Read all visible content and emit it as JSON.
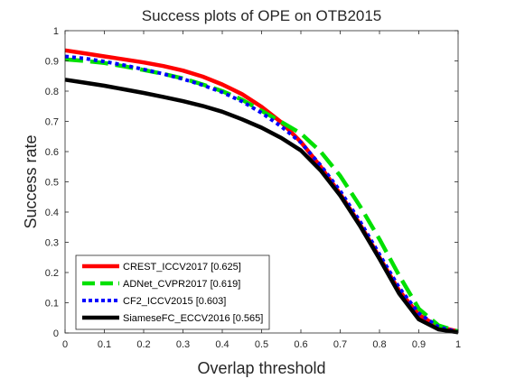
{
  "chart_data": {
    "type": "line",
    "title": "Success plots of OPE on OTB2015",
    "xlabel": "Overlap threshold",
    "ylabel": "Success rate",
    "xlim": [
      0,
      1
    ],
    "ylim": [
      0,
      1
    ],
    "xticks": [
      "0",
      "0.1",
      "0.2",
      "0.3",
      "0.4",
      "0.5",
      "0.6",
      "0.7",
      "0.8",
      "0.9",
      "1"
    ],
    "yticks": [
      "0",
      "0.1",
      "0.2",
      "0.3",
      "0.4",
      "0.5",
      "0.6",
      "0.7",
      "0.8",
      "0.9",
      "1"
    ],
    "grid": false,
    "legend_position": "bottom-left",
    "x": [
      0,
      0.05,
      0.1,
      0.15,
      0.2,
      0.25,
      0.3,
      0.35,
      0.4,
      0.45,
      0.5,
      0.55,
      0.6,
      0.65,
      0.7,
      0.75,
      0.8,
      0.85,
      0.9,
      0.95,
      1
    ],
    "series": [
      {
        "name": "CREST_ICCV2017 [0.625]",
        "color": "#ff0000",
        "dash": "solid",
        "values": [
          0.935,
          0.925,
          0.915,
          0.905,
          0.895,
          0.883,
          0.868,
          0.848,
          0.822,
          0.79,
          0.748,
          0.697,
          0.632,
          0.55,
          0.46,
          0.36,
          0.25,
          0.14,
          0.06,
          0.02,
          0.005
        ]
      },
      {
        "name": "ADNet_CVPR2017 [0.619]",
        "color": "#00e000",
        "dash": "dashed",
        "values": [
          0.905,
          0.9,
          0.893,
          0.882,
          0.87,
          0.857,
          0.842,
          0.822,
          0.8,
          0.772,
          0.735,
          0.698,
          0.66,
          0.6,
          0.52,
          0.42,
          0.31,
          0.19,
          0.08,
          0.025,
          0.005
        ]
      },
      {
        "name": "CF2_ICCV2015 [0.603]",
        "color": "#0000ff",
        "dash": "dotted",
        "values": [
          0.915,
          0.908,
          0.898,
          0.886,
          0.872,
          0.857,
          0.84,
          0.82,
          0.796,
          0.766,
          0.728,
          0.683,
          0.63,
          0.555,
          0.47,
          0.37,
          0.26,
          0.15,
          0.065,
          0.02,
          0.003
        ]
      },
      {
        "name": "SiameseFC_ECCV2016 [0.565]",
        "color": "#000000",
        "dash": "solid",
        "values": [
          0.838,
          0.828,
          0.818,
          0.806,
          0.794,
          0.781,
          0.767,
          0.751,
          0.732,
          0.707,
          0.679,
          0.645,
          0.604,
          0.538,
          0.455,
          0.355,
          0.245,
          0.13,
          0.045,
          0.012,
          0.002
        ]
      }
    ]
  }
}
